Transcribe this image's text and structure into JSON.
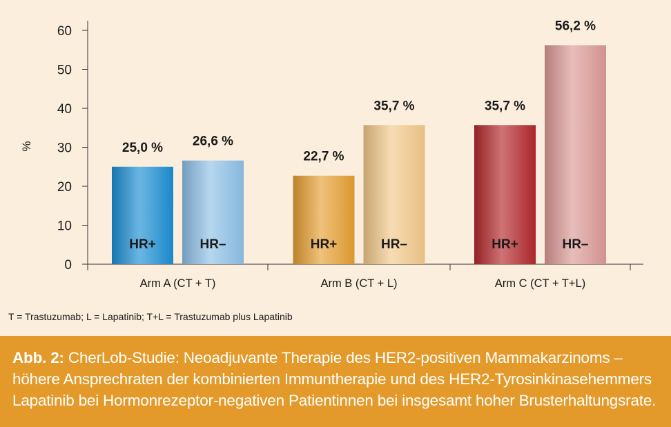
{
  "chart_data": {
    "type": "bar",
    "ylabel": "%",
    "ylim": [
      0,
      60
    ],
    "yticks": [
      0,
      10,
      20,
      30,
      40,
      50,
      60
    ],
    "categories": [
      "Arm A (CT + T)",
      "Arm B (CT + L)",
      "Arm C (CT + T+L)"
    ],
    "bar_labels": [
      "HR+",
      "HR–"
    ],
    "groups": [
      {
        "category": "Arm A (CT + T)",
        "bars": [
          {
            "label": "HR+",
            "value": 25.0,
            "data_label": "25,0 %",
            "color": "#1c8fd4"
          },
          {
            "label": "HR–",
            "value": 26.6,
            "data_label": "26,6 %",
            "color": "#8ec1e8"
          }
        ]
      },
      {
        "category": "Arm B (CT + L)",
        "bars": [
          {
            "label": "HR+",
            "value": 22.7,
            "data_label": "22,7 %",
            "color": "#e6a033"
          },
          {
            "label": "HR–",
            "value": 35.7,
            "data_label": "35,7 %",
            "color": "#f3c98a"
          }
        ]
      },
      {
        "category": "Arm C (CT + T+L)",
        "bars": [
          {
            "label": "HR+",
            "value": 35.7,
            "data_label": "35,7 %",
            "color": "#b3282b"
          },
          {
            "label": "HR–",
            "value": 56.2,
            "data_label": "56,2 %",
            "color": "#dc9a96"
          }
        ]
      }
    ]
  },
  "footnote": "T = Trastuzumab; L = Lapatinib; T+L = Trastuzumab plus Lapatinib",
  "caption": {
    "lead": "Abb. 2:",
    "text": " CherLob-Studie: Neoadjuvante Therapie des HER2-positiven Mammakarzinoms – höhere Ansprechraten der kombinierten Immuntherapie und des HER2-Tyrosinkinasehemmers Lapatinib bei Hormonrezeptor-negativen Patientinnen bei insgesamt hoher Brusterhaltungsrate."
  },
  "colors": {
    "background": "#fbeedd",
    "caption_background": "#e39a2a",
    "caption_text": "#ffffff"
  }
}
